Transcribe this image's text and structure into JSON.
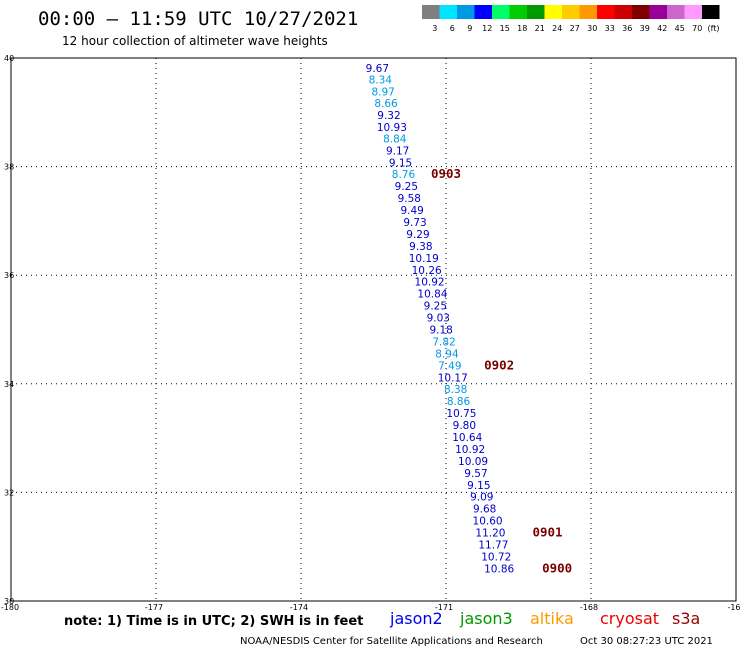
{
  "header": {
    "title": "00:00 – 11:59 UTC 10/27/2021",
    "subtitle": "12 hour collection of altimeter wave heights"
  },
  "legend": {
    "unit": "(ft)",
    "bins": [
      {
        "label": "3",
        "color": "#7f7f7f"
      },
      {
        "label": "6",
        "color": "#00e5ff"
      },
      {
        "label": "9",
        "color": "#0099e6"
      },
      {
        "label": "12",
        "color": "#0000ff"
      },
      {
        "label": "15",
        "color": "#00ff66"
      },
      {
        "label": "18",
        "color": "#00cc00"
      },
      {
        "label": "21",
        "color": "#009900"
      },
      {
        "label": "24",
        "color": "#ffff00"
      },
      {
        "label": "27",
        "color": "#ffcc00"
      },
      {
        "label": "30",
        "color": "#ff9900"
      },
      {
        "label": "33",
        "color": "#ff0000"
      },
      {
        "label": "36",
        "color": "#cc0000"
      },
      {
        "label": "39",
        "color": "#800000"
      },
      {
        "label": "42",
        "color": "#990099"
      },
      {
        "label": "45",
        "color": "#cc66cc"
      },
      {
        "label": "70",
        "color": "#ff99ff"
      },
      {
        "label": "",
        "color": "#000000"
      }
    ]
  },
  "chart_data": {
    "type": "scatter",
    "xlim": [
      -180,
      -165
    ],
    "ylim": [
      30,
      40
    ],
    "x_ticks": [
      "-180",
      "-177",
      "-174",
      "-171",
      "-168",
      "-16"
    ],
    "y_ticks": [
      "40",
      "38",
      "36",
      "34",
      "32",
      "30"
    ],
    "grid": true,
    "points": [
      {
        "lon": -172.42,
        "lat": 39.82,
        "value": "9.67",
        "color": "#0000cc"
      },
      {
        "lon": -172.36,
        "lat": 39.6,
        "value": "8.34",
        "color": "#0099e6"
      },
      {
        "lon": -172.3,
        "lat": 39.38,
        "value": "8.97",
        "color": "#0099e6"
      },
      {
        "lon": -172.24,
        "lat": 39.17,
        "value": "8.66",
        "color": "#0099e6"
      },
      {
        "lon": -172.18,
        "lat": 38.95,
        "value": "9.32",
        "color": "#0000cc"
      },
      {
        "lon": -172.12,
        "lat": 38.73,
        "value": "10.93",
        "color": "#0000cc"
      },
      {
        "lon": -172.06,
        "lat": 38.52,
        "value": "8.84",
        "color": "#0099e6"
      },
      {
        "lon": -172.0,
        "lat": 38.3,
        "value": "9.17",
        "color": "#0000cc"
      },
      {
        "lon": -171.94,
        "lat": 38.08,
        "value": "9.15",
        "color": "#0000cc"
      },
      {
        "lon": -171.88,
        "lat": 37.86,
        "value": "8.76",
        "color": "#0099e6"
      },
      {
        "lon": -171.82,
        "lat": 37.64,
        "value": "9.25",
        "color": "#0000cc"
      },
      {
        "lon": -171.76,
        "lat": 37.42,
        "value": "9.58",
        "color": "#0000cc"
      },
      {
        "lon": -171.7,
        "lat": 37.2,
        "value": "9.49",
        "color": "#0000cc"
      },
      {
        "lon": -171.64,
        "lat": 36.98,
        "value": "9.73",
        "color": "#0000cc"
      },
      {
        "lon": -171.58,
        "lat": 36.76,
        "value": "9.29",
        "color": "#0000cc"
      },
      {
        "lon": -171.52,
        "lat": 36.54,
        "value": "9.38",
        "color": "#0000cc"
      },
      {
        "lon": -171.46,
        "lat": 36.32,
        "value": "10.19",
        "color": "#0000cc"
      },
      {
        "lon": -171.4,
        "lat": 36.1,
        "value": "10.26",
        "color": "#0000cc"
      },
      {
        "lon": -171.34,
        "lat": 35.88,
        "value": "10.92",
        "color": "#0000cc"
      },
      {
        "lon": -171.28,
        "lat": 35.66,
        "value": "10.84",
        "color": "#0000cc"
      },
      {
        "lon": -171.22,
        "lat": 35.44,
        "value": "9.25",
        "color": "#0000cc"
      },
      {
        "lon": -171.16,
        "lat": 35.22,
        "value": "9.03",
        "color": "#0000cc"
      },
      {
        "lon": -171.1,
        "lat": 35.0,
        "value": "9.18",
        "color": "#0000cc"
      },
      {
        "lon": -171.04,
        "lat": 34.78,
        "value": "7.82",
        "color": "#0099e6"
      },
      {
        "lon": -170.98,
        "lat": 34.56,
        "value": "8.94",
        "color": "#0099e6"
      },
      {
        "lon": -170.92,
        "lat": 34.34,
        "value": "7.49",
        "color": "#0099e6"
      },
      {
        "lon": -170.86,
        "lat": 34.12,
        "value": "10.17",
        "color": "#0000cc"
      },
      {
        "lon": -170.8,
        "lat": 33.9,
        "value": "8.38",
        "color": "#0099e6"
      },
      {
        "lon": -170.74,
        "lat": 33.68,
        "value": "8.86",
        "color": "#0099e6"
      },
      {
        "lon": -170.68,
        "lat": 33.46,
        "value": "10.75",
        "color": "#0000cc"
      },
      {
        "lon": -170.62,
        "lat": 33.24,
        "value": "9.80",
        "color": "#0000cc"
      },
      {
        "lon": -170.56,
        "lat": 33.02,
        "value": "10.64",
        "color": "#0000cc"
      },
      {
        "lon": -170.5,
        "lat": 32.8,
        "value": "10.92",
        "color": "#0000cc"
      },
      {
        "lon": -170.44,
        "lat": 32.58,
        "value": "10.09",
        "color": "#0000cc"
      },
      {
        "lon": -170.38,
        "lat": 32.36,
        "value": "9.57",
        "color": "#0000cc"
      },
      {
        "lon": -170.32,
        "lat": 32.14,
        "value": "9.15",
        "color": "#0000cc"
      },
      {
        "lon": -170.26,
        "lat": 31.92,
        "value": "9.09",
        "color": "#0000cc"
      },
      {
        "lon": -170.2,
        "lat": 31.7,
        "value": "9.68",
        "color": "#0000cc"
      },
      {
        "lon": -170.14,
        "lat": 31.48,
        "value": "10.60",
        "color": "#0000cc"
      },
      {
        "lon": -170.08,
        "lat": 31.26,
        "value": "11.20",
        "color": "#0000cc"
      },
      {
        "lon": -170.02,
        "lat": 31.04,
        "value": "11.77",
        "color": "#0000cc"
      },
      {
        "lon": -169.96,
        "lat": 30.82,
        "value": "10.72",
        "color": "#0000cc"
      },
      {
        "lon": -169.9,
        "lat": 30.6,
        "value": "10.86",
        "color": "#0000cc"
      }
    ],
    "pass_labels": [
      {
        "lon": -171.0,
        "lat": 37.86,
        "text": "0903"
      },
      {
        "lon": -169.9,
        "lat": 34.34,
        "text": "0902"
      },
      {
        "lon": -168.9,
        "lat": 31.26,
        "text": "0901"
      },
      {
        "lon": -168.7,
        "lat": 30.6,
        "text": "0900"
      }
    ]
  },
  "footer": {
    "note": "note:  1)  Time is in UTC;  2)  SWH is in feet",
    "satellites": [
      {
        "name": "jason2",
        "color": "#0000ee"
      },
      {
        "name": "jason3",
        "color": "#009900"
      },
      {
        "name": "altika",
        "color": "#ff9900"
      },
      {
        "name": "cryosat",
        "color": "#ee0000"
      },
      {
        "name": "s3a",
        "color": "#990000"
      }
    ],
    "credit": "NOAA/NESDIS Center for Satellite Applications and Research",
    "timestamp": "Oct 30 08:27:23 UTC 2021"
  }
}
